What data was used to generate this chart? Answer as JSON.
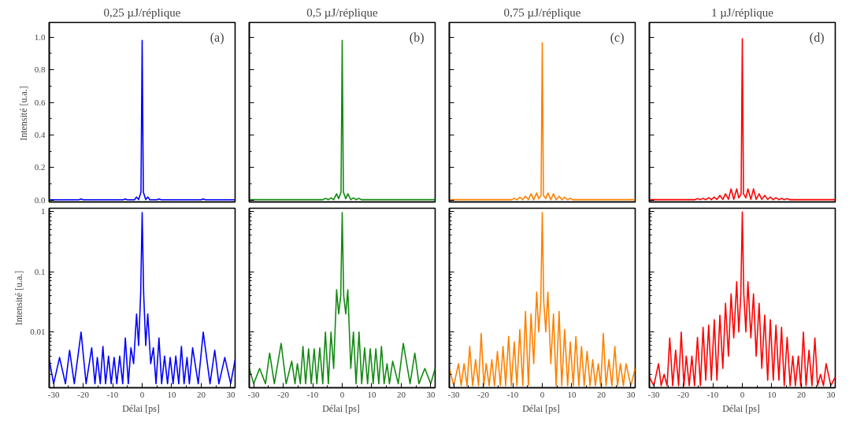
{
  "chart_data": [
    {
      "type": "line",
      "title": "0,25 µJ/réplique",
      "ylabel": "Intensité  [u.a.]",
      "annotations": [
        "(a)"
      ],
      "xlim": [
        -31.5,
        31.5
      ],
      "xticks": [
        -30,
        -20,
        -10,
        0,
        10,
        20,
        30
      ],
      "ylim": [
        -0.01,
        1.09
      ],
      "yticks": [
        {
          "value": 0,
          "label": "0.0"
        },
        {
          "value": 0.2,
          "label": "0.2"
        },
        {
          "value": 0.4,
          "label": "0.4"
        },
        {
          "value": 0.6,
          "label": "0.6"
        },
        {
          "value": 0.8,
          "label": "0.8"
        },
        {
          "value": 1,
          "label": "1.0"
        }
      ],
      "tick_labels": "y",
      "series": [
        {
          "color": "#0000ff",
          "x": [
            -31.5,
            -21.5,
            -20.7,
            -20,
            -6.5,
            -5.7,
            -5,
            -2.6,
            -1.9,
            -1.2,
            -0.4,
            0,
            0.4,
            1.2,
            1.9,
            2.6,
            5,
            5.7,
            6.5,
            20,
            20.7,
            21.5,
            31.5
          ],
          "values": [
            0.003,
            0.003,
            0.008,
            0.003,
            0.003,
            0.008,
            0.003,
            0.003,
            0.02,
            0.004,
            0.05,
            0.98,
            0.05,
            0.004,
            0.02,
            0.003,
            0.003,
            0.008,
            0.003,
            0.003,
            0.008,
            0.003,
            0.003
          ]
        }
      ]
    },
    {
      "type": "line",
      "title": "0,5 µJ/réplique",
      "annotations": [
        "(b)"
      ],
      "xlim": [
        -31.5,
        31.5
      ],
      "xticks": [
        -30,
        -20,
        -10,
        0,
        10,
        20,
        30
      ],
      "ylim": [
        -0.01,
        1.09
      ],
      "yticks": [
        0,
        0.2,
        0.4,
        0.6,
        0.8,
        1
      ],
      "tick_labels": false,
      "series": [
        {
          "color": "#138a13",
          "x": [
            -31.5,
            -6.5,
            -5.7,
            -4.7,
            -3.8,
            -2.9,
            -1.9,
            -1.2,
            -0.4,
            0,
            0.4,
            1.2,
            1.9,
            2.9,
            3.8,
            4.7,
            5.7,
            6.5,
            31.5
          ],
          "values": [
            0.004,
            0.004,
            0.012,
            0.004,
            0.015,
            0.004,
            0.04,
            0.01,
            0.05,
            0.98,
            0.05,
            0.01,
            0.04,
            0.004,
            0.015,
            0.004,
            0.012,
            0.004,
            0.004
          ]
        }
      ]
    },
    {
      "type": "line",
      "title": "0,75 µJ/réplique",
      "annotations": [
        "(c)"
      ],
      "xlim": [
        -31.5,
        31.5
      ],
      "xticks": [
        -30,
        -20,
        -10,
        0,
        10,
        20,
        30
      ],
      "ylim": [
        -0.01,
        1.09
      ],
      "yticks": [
        0,
        0.2,
        0.4,
        0.6,
        0.8,
        1
      ],
      "tick_labels": false,
      "series": [
        {
          "color": "#ff8000",
          "x": [
            -31.5,
            -10.4,
            -9.5,
            -8.6,
            -7.6,
            -6.6,
            -5.7,
            -4.7,
            -3.8,
            -2.9,
            -1.9,
            -1.2,
            -0.4,
            0,
            0.4,
            1.2,
            1.9,
            2.9,
            3.8,
            4.7,
            5.7,
            6.6,
            7.6,
            8.6,
            9.5,
            10.4,
            31.5
          ],
          "values": [
            0.004,
            0.004,
            0.012,
            0.004,
            0.018,
            0.004,
            0.025,
            0.004,
            0.04,
            0.004,
            0.045,
            0.01,
            0.03,
            0.965,
            0.03,
            0.01,
            0.045,
            0.004,
            0.04,
            0.004,
            0.025,
            0.004,
            0.018,
            0.004,
            0.012,
            0.004,
            0.004
          ]
        }
      ]
    },
    {
      "type": "line",
      "title": "1 µJ/réplique",
      "annotations": [
        "(d)"
      ],
      "xlim": [
        -31.5,
        31.5
      ],
      "xticks": [
        -30,
        -20,
        -10,
        0,
        10,
        20,
        30
      ],
      "ylim": [
        -0.01,
        1.09
      ],
      "yticks": [
        0,
        0.2,
        0.4,
        0.6,
        0.8,
        1
      ],
      "tick_labels": false,
      "series": [
        {
          "color": "#ff0000",
          "x": [
            -31.5,
            -16,
            -15.2,
            -14.2,
            -13.3,
            -12.4,
            -11.4,
            -10.5,
            -9.5,
            -8.6,
            -7.6,
            -6.6,
            -5.7,
            -4.7,
            -3.8,
            -2.9,
            -1.9,
            -1.2,
            -0.4,
            0,
            0.4,
            1.2,
            1.9,
            2.9,
            3.8,
            4.7,
            5.7,
            6.6,
            7.6,
            8.6,
            9.5,
            10.5,
            11.4,
            12.4,
            13.3,
            14.2,
            15.2,
            16,
            31.5
          ],
          "values": [
            0.004,
            0.004,
            0.01,
            0.004,
            0.012,
            0.004,
            0.016,
            0.004,
            0.02,
            0.005,
            0.03,
            0.005,
            0.04,
            0.006,
            0.07,
            0.006,
            0.07,
            0.015,
            0.04,
            0.99,
            0.04,
            0.015,
            0.07,
            0.006,
            0.07,
            0.006,
            0.04,
            0.005,
            0.03,
            0.005,
            0.02,
            0.004,
            0.016,
            0.004,
            0.012,
            0.004,
            0.01,
            0.004,
            0.004
          ]
        }
      ]
    },
    {
      "type": "line",
      "xlabel": "Délai  [ps]",
      "ylabel": "Intensité [u.a.]",
      "log": true,
      "xlim": [
        -31.5,
        31.5
      ],
      "xticks": [
        -30,
        -20,
        -10,
        0,
        10,
        20,
        30
      ],
      "ylim": [
        0.0012,
        1.12
      ],
      "yticks": [
        0.01,
        0.1,
        1
      ],
      "series": [
        {
          "color": "#0000ff",
          "x": [
            -31.5,
            -30,
            -28,
            -26,
            -24.6,
            -23,
            -20.7,
            -19,
            -17.1,
            -16,
            -15.2,
            -14.2,
            -13.3,
            -12.4,
            -11.4,
            -10.5,
            -9.5,
            -8.6,
            -7.6,
            -6.6,
            -5.7,
            -4.7,
            -3.8,
            -2.9,
            -1.9,
            -1.2,
            -0.5,
            0,
            0.5,
            1.2,
            1.9,
            2.9,
            3.8,
            4.7,
            5.7,
            6.6,
            7.6,
            8.6,
            9.5,
            10.5,
            11.4,
            12.4,
            13.3,
            14.2,
            15.2,
            16,
            17.1,
            19,
            20.7,
            23,
            24.6,
            26,
            28,
            30,
            31.5
          ],
          "values": [
            0.0035,
            0.0014,
            0.0038,
            0.0014,
            0.005,
            0.0014,
            0.01,
            0.0014,
            0.0055,
            0.0014,
            0.0038,
            0.0014,
            0.0058,
            0.0014,
            0.004,
            0.0014,
            0.0038,
            0.0014,
            0.004,
            0.0014,
            0.008,
            0.0014,
            0.0055,
            0.003,
            0.02,
            0.006,
            0.045,
            0.95,
            0.045,
            0.006,
            0.02,
            0.003,
            0.0055,
            0.0014,
            0.008,
            0.0014,
            0.004,
            0.0014,
            0.0038,
            0.0014,
            0.004,
            0.0014,
            0.0058,
            0.0014,
            0.0038,
            0.0014,
            0.0055,
            0.0014,
            0.01,
            0.0014,
            0.005,
            0.0014,
            0.0038,
            0.0014,
            0.0035
          ]
        }
      ]
    },
    {
      "type": "line",
      "xlabel": "Délai  [ps]",
      "log": true,
      "xlim": [
        -31.5,
        31.5
      ],
      "xticks": [
        -30,
        -20,
        -10,
        0,
        10,
        20,
        30
      ],
      "ylim": [
        0.0012,
        1.12
      ],
      "yticks": [
        0.01,
        0.1,
        1
      ],
      "tick_labels": "x",
      "series": [
        {
          "color": "#138a13",
          "x": [
            -31.5,
            -30,
            -28,
            -26,
            -24.6,
            -23,
            -20.7,
            -19,
            -17.1,
            -16,
            -15.2,
            -14.2,
            -13.3,
            -12.4,
            -11.4,
            -10.5,
            -9.5,
            -8.6,
            -7.6,
            -6.6,
            -5.7,
            -4.7,
            -3.8,
            -2.9,
            -1.9,
            -1.2,
            -0.5,
            0,
            0.5,
            1.2,
            1.9,
            2.9,
            3.8,
            4.7,
            5.7,
            6.6,
            7.6,
            8.6,
            9.5,
            10.5,
            11.4,
            12.4,
            13.3,
            14.2,
            15.2,
            16,
            17.1,
            19,
            20.7,
            23,
            24.6,
            26,
            28,
            30,
            31.5
          ],
          "values": [
            0.0025,
            0.0014,
            0.0025,
            0.0014,
            0.0045,
            0.0014,
            0.0065,
            0.0014,
            0.0033,
            0.0014,
            0.003,
            0.0014,
            0.0058,
            0.0014,
            0.0053,
            0.0014,
            0.0053,
            0.0014,
            0.0055,
            0.0014,
            0.01,
            0.0014,
            0.01,
            0.0025,
            0.05,
            0.02,
            0.04,
            0.95,
            0.04,
            0.02,
            0.05,
            0.0025,
            0.01,
            0.0014,
            0.01,
            0.0014,
            0.0055,
            0.0014,
            0.0053,
            0.0014,
            0.0053,
            0.0014,
            0.0058,
            0.0014,
            0.003,
            0.0014,
            0.0033,
            0.0014,
            0.0065,
            0.0014,
            0.0045,
            0.0014,
            0.0025,
            0.0014,
            0.0025
          ]
        }
      ]
    },
    {
      "type": "line",
      "xlabel": "Délai  [ps]",
      "log": true,
      "xlim": [
        -31.5,
        31.5
      ],
      "xticks": [
        -30,
        -20,
        -10,
        0,
        10,
        20,
        30
      ],
      "ylim": [
        0.0012,
        1.12
      ],
      "yticks": [
        0.01,
        0.1,
        1
      ],
      "tick_labels": "x",
      "series": [
        {
          "color": "#ff8000",
          "x": [
            -31.5,
            -30,
            -28.4,
            -27.5,
            -26.5,
            -25.5,
            -24.6,
            -23.6,
            -22.6,
            -21.6,
            -20.7,
            -19.8,
            -19,
            -18,
            -17.1,
            -16.2,
            -15.2,
            -14.2,
            -13.3,
            -12.4,
            -11.4,
            -10.5,
            -9.5,
            -8.6,
            -7.6,
            -6.6,
            -5.7,
            -4.7,
            -3.8,
            -2.9,
            -1.9,
            -1.2,
            -0.5,
            0,
            0.5,
            1.2,
            1.9,
            2.9,
            3.8,
            4.7,
            5.7,
            6.6,
            7.6,
            8.6,
            9.5,
            10.5,
            11.4,
            12.4,
            13.3,
            14.2,
            15.2,
            16.2,
            17.1,
            18,
            19,
            19.8,
            20.7,
            21.6,
            22.6,
            23.6,
            24.6,
            25.5,
            26.5,
            27.5,
            28.4,
            30,
            31.5
          ],
          "values": [
            0.0025,
            0.0013,
            0.003,
            0.0013,
            0.003,
            0.0013,
            0.0058,
            0.0013,
            0.0035,
            0.0013,
            0.0095,
            0.0013,
            0.003,
            0.0013,
            0.0035,
            0.0013,
            0.0048,
            0.0013,
            0.0058,
            0.0013,
            0.0085,
            0.0013,
            0.0068,
            0.0013,
            0.011,
            0.0013,
            0.022,
            0.0013,
            0.02,
            0.003,
            0.046,
            0.01,
            0.032,
            0.95,
            0.032,
            0.01,
            0.046,
            0.003,
            0.02,
            0.0013,
            0.022,
            0.0013,
            0.011,
            0.0013,
            0.0068,
            0.0013,
            0.0085,
            0.0013,
            0.0058,
            0.0013,
            0.0048,
            0.0013,
            0.0035,
            0.0013,
            0.003,
            0.0013,
            0.0095,
            0.0013,
            0.0035,
            0.0013,
            0.0058,
            0.0013,
            0.003,
            0.0013,
            0.003,
            0.0013,
            0.0025
          ]
        }
      ]
    },
    {
      "type": "line",
      "xlabel": "Délai  [ps]",
      "log": true,
      "xlim": [
        -31.5,
        31.5
      ],
      "xticks": [
        -30,
        -20,
        -10,
        0,
        10,
        20,
        30
      ],
      "ylim": [
        0.0012,
        1.12
      ],
      "yticks": [
        0.01,
        0.1,
        1
      ],
      "tick_labels": "x",
      "series": [
        {
          "color": "#ff0000",
          "x": [
            -31.5,
            -30,
            -28.4,
            -27.5,
            -26.5,
            -25.5,
            -24.6,
            -23.6,
            -22.6,
            -21.6,
            -20.7,
            -19.8,
            -19,
            -18,
            -17.1,
            -16.2,
            -15.2,
            -14.2,
            -13.3,
            -12.4,
            -11.4,
            -10.5,
            -9.5,
            -8.6,
            -7.6,
            -6.6,
            -5.7,
            -4.7,
            -3.8,
            -2.9,
            -1.9,
            -1.2,
            -0.5,
            0,
            0.5,
            1.2,
            1.9,
            2.9,
            3.8,
            4.7,
            5.7,
            6.6,
            7.6,
            8.6,
            9.5,
            10.5,
            11.4,
            12.4,
            13.3,
            14.2,
            15.2,
            16.2,
            17.1,
            18,
            19,
            19.8,
            20.7,
            21.6,
            22.6,
            23.6,
            24.6,
            25.5,
            26.5,
            27.5,
            28.4,
            30,
            31.5
          ],
          "values": [
            0.0018,
            0.0013,
            0.003,
            0.0013,
            0.002,
            0.0013,
            0.008,
            0.0013,
            0.005,
            0.0013,
            0.01,
            0.0013,
            0.004,
            0.0013,
            0.004,
            0.0013,
            0.0082,
            0.0013,
            0.012,
            0.0016,
            0.013,
            0.0016,
            0.016,
            0.0016,
            0.019,
            0.0025,
            0.03,
            0.004,
            0.043,
            0.008,
            0.068,
            0.01,
            0.043,
            0.97,
            0.043,
            0.01,
            0.068,
            0.008,
            0.043,
            0.004,
            0.03,
            0.0025,
            0.019,
            0.0016,
            0.016,
            0.0016,
            0.013,
            0.0016,
            0.012,
            0.0013,
            0.0082,
            0.0013,
            0.004,
            0.0013,
            0.004,
            0.0013,
            0.01,
            0.0013,
            0.005,
            0.0013,
            0.008,
            0.0013,
            0.002,
            0.0013,
            0.003,
            0.0013,
            0.0018
          ]
        }
      ]
    }
  ]
}
